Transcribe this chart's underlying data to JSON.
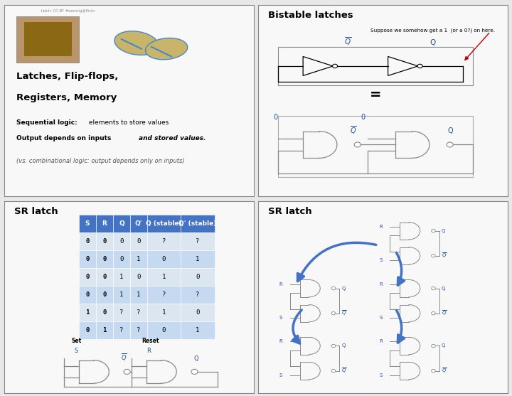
{
  "bg_color": "#e8e8e8",
  "panel_bg": "#f8f8f8",
  "border_color": "#888888",
  "blue": "#1f4e9e",
  "red": "#c00000",
  "black": "#000000",
  "gray": "#888888",
  "table_header_bg": "#4472c4",
  "table_row_light": "#dce6f1",
  "table_row_dark": "#c5d9f1",
  "annotation": "Suppose we somehow get a 1  (or a 0?) on here.",
  "table_headers": [
    "S",
    "R",
    "Q",
    "Q'",
    "Q (stable)",
    "Q' (stable)"
  ],
  "table_rows": [
    [
      "0",
      "0",
      "0",
      "0",
      "?",
      "?"
    ],
    [
      "0",
      "0",
      "0",
      "1",
      "0",
      "1"
    ],
    [
      "0",
      "0",
      "1",
      "0",
      "1",
      "0"
    ],
    [
      "0",
      "0",
      "1",
      "1",
      "?",
      "?"
    ],
    [
      "1",
      "0",
      "?",
      "?",
      "1",
      "0"
    ],
    [
      "0",
      "1",
      "?",
      "?",
      "0",
      "1"
    ]
  ]
}
